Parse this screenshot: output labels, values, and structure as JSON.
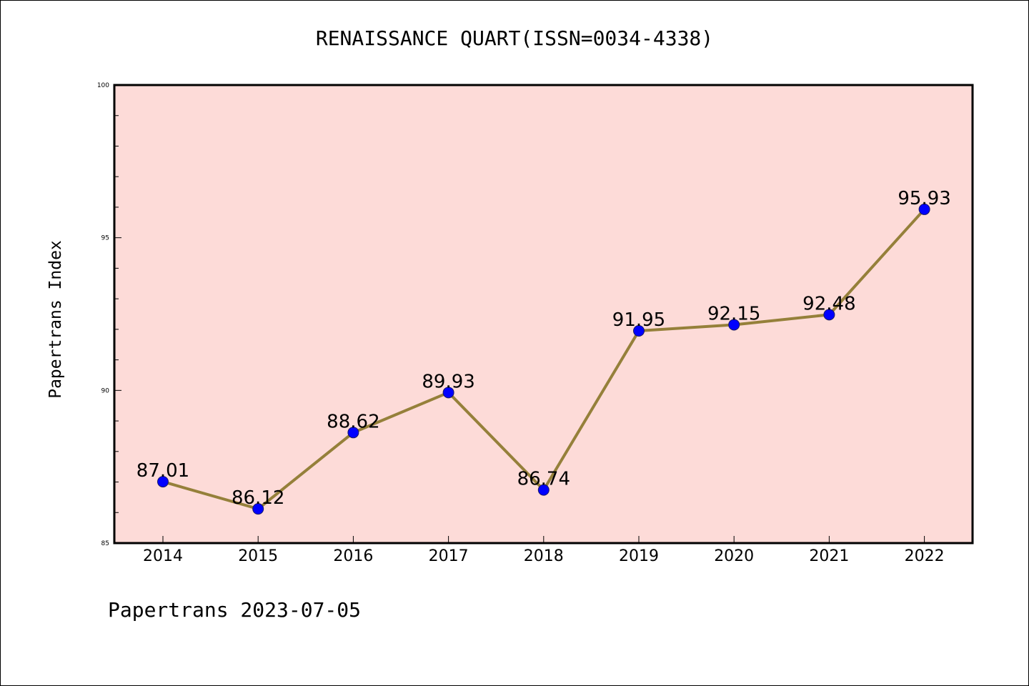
{
  "chart_data": {
    "type": "line",
    "title": "RENAISSANCE QUART(ISSN=0034-4338)",
    "xlabel": "",
    "ylabel": "Papertrans Index",
    "categories": [
      "2014",
      "2015",
      "2016",
      "2017",
      "2018",
      "2019",
      "2020",
      "2021",
      "2022"
    ],
    "values": [
      87.01,
      86.12,
      88.62,
      89.93,
      86.74,
      91.95,
      92.15,
      92.48,
      95.93
    ],
    "data_labels": [
      "87.01",
      "86.12",
      "88.62",
      "89.93",
      "86.74",
      "91.95",
      "92.15",
      "92.48",
      "95.93"
    ],
    "ylim": [
      85,
      100
    ],
    "yticks": [
      85,
      90,
      95,
      100
    ],
    "ytick_labels": [
      "85",
      "90",
      "95",
      "100"
    ],
    "grid": false,
    "legend": "none"
  },
  "footer": "Papertrans 2023-07-05",
  "colors": {
    "plot_background": "#fddbd8",
    "line": "#95803a",
    "marker": "#0000ff"
  }
}
